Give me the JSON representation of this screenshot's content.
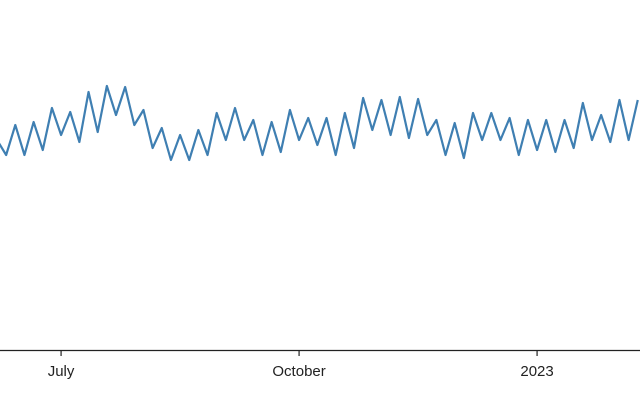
{
  "chart_data": {
    "type": "line",
    "categories": [
      null,
      null,
      null,
      null,
      null,
      null,
      null,
      "July",
      null,
      null,
      null,
      null,
      null,
      null,
      null,
      null,
      null,
      null,
      null,
      null,
      null,
      null,
      null,
      null,
      null,
      null,
      null,
      null,
      null,
      null,
      null,
      null,
      null,
      "October",
      null,
      null,
      null,
      null,
      null,
      null,
      null,
      null,
      null,
      null,
      null,
      null,
      null,
      null,
      null,
      null,
      null,
      null,
      null,
      null,
      null,
      null,
      null,
      null,
      null,
      "2023",
      null,
      null,
      null,
      null,
      null,
      null,
      null,
      null,
      null,
      null,
      null
    ],
    "series": [
      {
        "color": "#3f7fb2",
        "values": [
          210,
          195,
          225,
          195,
          228,
          200,
          242,
          215,
          238,
          208,
          258,
          218,
          264,
          235,
          263,
          225,
          240,
          202,
          222,
          190,
          215,
          190,
          220,
          195,
          237,
          210,
          242,
          210,
          230,
          195,
          228,
          198,
          240,
          210,
          232,
          205,
          232,
          195,
          237,
          202,
          252,
          220,
          250,
          215,
          253,
          212,
          251,
          215,
          230,
          195,
          227,
          192,
          237,
          210,
          237,
          210,
          232,
          195,
          230,
          200,
          230,
          198,
          230,
          202,
          247,
          210,
          235,
          208,
          250,
          210,
          250
        ]
      }
    ],
    "ylim": [
      0,
      350
    ]
  }
}
